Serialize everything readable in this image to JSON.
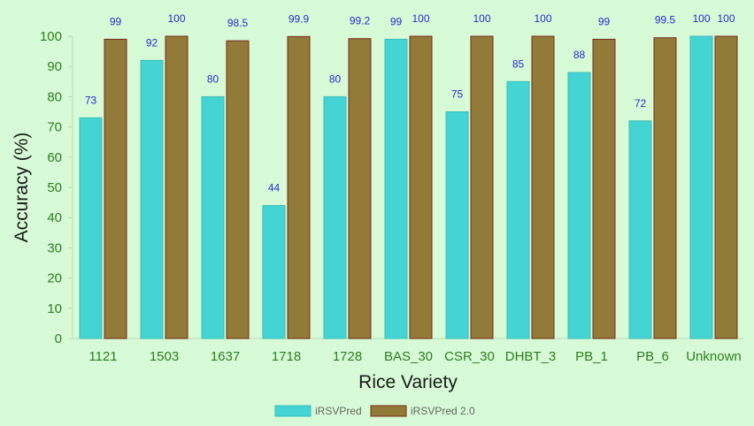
{
  "chart_data": {
    "type": "bar",
    "categories": [
      "1121",
      "1503",
      "1637",
      "1718",
      "1728",
      "BAS_30",
      "CSR_30",
      "DHBT_3",
      "PB_1",
      "PB_6",
      "Unknown"
    ],
    "series": [
      {
        "name": "iRSVPred",
        "values": [
          73,
          92,
          80,
          44,
          80,
          99,
          75,
          85,
          88,
          72,
          100
        ],
        "labels": [
          "73",
          "92",
          "80",
          "44",
          "80",
          "99",
          "75",
          "85",
          "88",
          "72",
          "100"
        ],
        "color": "#45d4d4",
        "stroke": "#3bbcbc"
      },
      {
        "name": "iRSVPred 2.0",
        "values": [
          99,
          100,
          98.5,
          99.9,
          99.2,
          100,
          100,
          100,
          99,
          99.5,
          100
        ],
        "labels": [
          "99",
          "100",
          "98.5",
          "99.9",
          "99.2",
          "100",
          "100",
          "100",
          "99",
          "99.5",
          "100"
        ],
        "color": "#927a38",
        "stroke": "#7a2a1a"
      }
    ],
    "xlabel": "Rice Variety",
    "ylabel": "Accuracy (%)",
    "ylim": [
      0,
      100
    ],
    "yticks": [
      0,
      10,
      20,
      30,
      40,
      50,
      60,
      70,
      80,
      90,
      100
    ],
    "grid": false,
    "legend": "bottom-center",
    "colors": {
      "background": "#d6fbd6",
      "tick_text": "#2e7d1e",
      "data_label": "#2a2ad0",
      "axis_line": "#bcd9bc"
    }
  }
}
